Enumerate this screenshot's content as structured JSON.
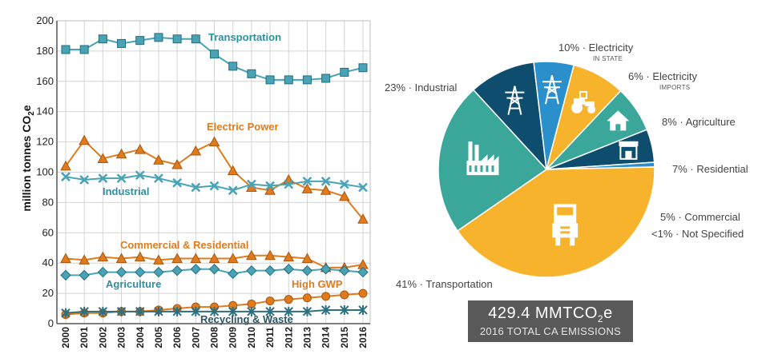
{
  "chart_data": [
    {
      "type": "line",
      "ylabel": "million tonnes CO2e",
      "ylabel_main": "million tonnes CO",
      "ylabel_sub": "2",
      "ylabel_tail": "e",
      "ylim": [
        0,
        200
      ],
      "yticks": [
        0,
        20,
        40,
        60,
        80,
        100,
        120,
        140,
        160,
        180,
        200
      ],
      "x": [
        "2000",
        "2001",
        "2002",
        "2003",
        "2004",
        "2005",
        "2006",
        "2007",
        "2008",
        "2009",
        "2010",
        "2011",
        "2012",
        "2013",
        "2014",
        "2015",
        "2016"
      ],
      "grid": true,
      "series": [
        {
          "name": "Transportation",
          "color": "#4aa3b5",
          "marker": "square",
          "label_color": "#2e8fa3",
          "values": [
            181,
            181,
            188,
            185,
            187,
            189,
            188,
            188,
            178,
            170,
            165,
            161,
            161,
            161,
            162,
            166,
            169
          ]
        },
        {
          "name": "Electric Power",
          "color": "#e07b1c",
          "marker": "triangle",
          "label_color": "#e07b1c",
          "values": [
            104,
            121,
            109,
            112,
            115,
            108,
            105,
            114,
            120,
            101,
            90,
            88,
            95,
            89,
            88,
            84,
            69
          ]
        },
        {
          "name": "Industrial",
          "color": "#4aa3b5",
          "marker": "x",
          "label_color": "#2e8fa3",
          "values": [
            97,
            95,
            96,
            96,
            98,
            96,
            93,
            90,
            91,
            88,
            92,
            91,
            92,
            94,
            94,
            92,
            90
          ]
        },
        {
          "name": "Commercial & Residential",
          "color": "#e07b1c",
          "marker": "triangle",
          "label_color": "#e07b1c",
          "values": [
            43,
            42,
            44,
            43,
            44,
            42,
            43,
            43,
            43,
            43,
            45,
            45,
            44,
            43,
            37,
            37,
            39
          ]
        },
        {
          "name": "Agriculture",
          "color": "#4aa3b5",
          "marker": "diamond",
          "label_color": "#2e8fa3",
          "values": [
            32,
            32,
            34,
            34,
            34,
            34,
            35,
            36,
            36,
            33,
            35,
            35,
            36,
            35,
            36,
            35,
            34
          ]
        },
        {
          "name": "High GWP",
          "color": "#e07b1c",
          "marker": "circle",
          "label_color": "#e07b1c",
          "values": [
            6,
            7,
            7,
            8,
            8,
            9,
            10,
            11,
            11,
            12,
            13,
            15,
            16,
            17,
            18,
            19,
            20
          ]
        },
        {
          "name": "Recycling & Waste",
          "color": "#2c6f80",
          "marker": "asterisk",
          "label_color": "#2c5566",
          "values": [
            7,
            8,
            8,
            8,
            8,
            8,
            8,
            8,
            8,
            8,
            8,
            8,
            8,
            8,
            9,
            9,
            9
          ]
        }
      ]
    },
    {
      "type": "pie",
      "slices": [
        {
          "pct_label": "10%",
          "name": "Electricity",
          "sub": "IN STATE",
          "value": 10,
          "color": "#0f4d6e",
          "icon": "power-tower-icon"
        },
        {
          "pct_label": "6%",
          "name": "Electricity",
          "sub": "IMPORTS",
          "value": 6,
          "color": "#2b8fcc",
          "icon": "power-tower-icon"
        },
        {
          "pct_label": "8%",
          "name": "Agriculture",
          "sub": "",
          "value": 8,
          "color": "#f7b32b",
          "icon": "tractor-icon"
        },
        {
          "pct_label": "7%",
          "name": "Residential",
          "sub": "",
          "value": 7,
          "color": "#3aa79a",
          "icon": "house-icon"
        },
        {
          "pct_label": "5%",
          "name": "Commercial",
          "sub": "",
          "value": 5,
          "color": "#0f4d6e",
          "icon": "storefront-icon"
        },
        {
          "pct_label": "<1%",
          "name": "Not Specified",
          "sub": "",
          "value": 0.7,
          "color": "#2b8fcc",
          "icon": ""
        },
        {
          "pct_label": "41%",
          "name": "Transportation",
          "sub": "",
          "value": 41,
          "color": "#f7b32b",
          "icon": "truck-icon"
        },
        {
          "pct_label": "23%",
          "name": "Industrial",
          "sub": "",
          "value": 23,
          "color": "#3aa79a",
          "icon": "factory-icon"
        }
      ]
    }
  ],
  "total": {
    "value_main": "429.4 MMTCO",
    "value_sub": "2",
    "value_tail": "e",
    "caption": "2016 TOTAL CA EMISSIONS"
  }
}
